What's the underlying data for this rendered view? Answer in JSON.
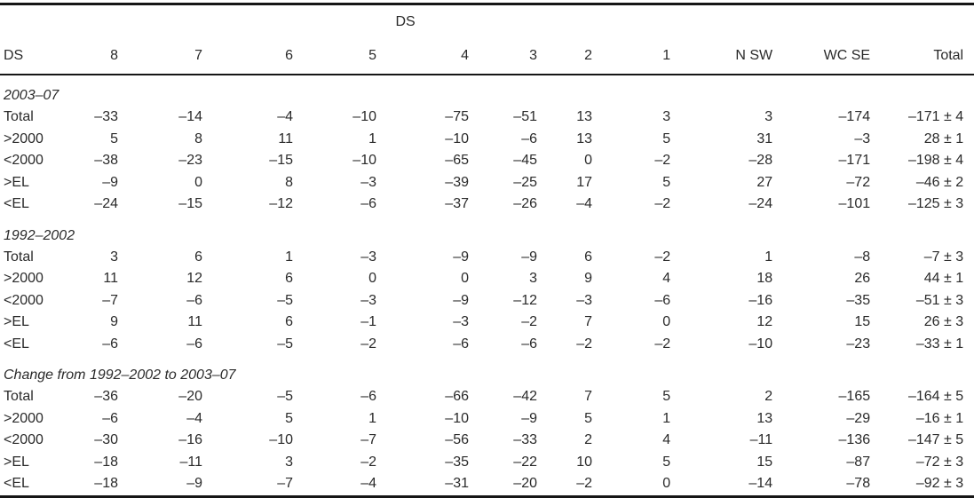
{
  "colors": {
    "background": "#ffffff",
    "text": "#2a2a2a",
    "rule": "#161616"
  },
  "table": {
    "span_header": "DS",
    "columns": [
      "DS",
      "8",
      "7",
      "6",
      "5",
      "4",
      "3",
      "2",
      "1",
      "N SW",
      "WC SE",
      "Total"
    ],
    "sections": [
      {
        "title": "2003–07",
        "rows": [
          {
            "label": "Total",
            "values": [
              "–33",
              "–14",
              "–4",
              "–10",
              "–75",
              "–51",
              "13",
              "3",
              "3",
              "–174",
              "–171 ± 4"
            ]
          },
          {
            "label": ">2000",
            "values": [
              "5",
              "8",
              "11",
              "1",
              "–10",
              "–6",
              "13",
              "5",
              "31",
              "–3",
              "28 ± 1"
            ]
          },
          {
            "label": "<2000",
            "values": [
              "–38",
              "–23",
              "–15",
              "–10",
              "–65",
              "–45",
              "0",
              "–2",
              "–28",
              "–171",
              "–198 ± 4"
            ]
          },
          {
            "label": ">EL",
            "values": [
              "–9",
              "0",
              "8",
              "–3",
              "–39",
              "–25",
              "17",
              "5",
              "27",
              "–72",
              "–46 ± 2"
            ]
          },
          {
            "label": "<EL",
            "values": [
              "–24",
              "–15",
              "–12",
              "–6",
              "–37",
              "–26",
              "–4",
              "–2",
              "–24",
              "–101",
              "–125 ± 3"
            ]
          }
        ]
      },
      {
        "title": "1992–2002",
        "rows": [
          {
            "label": "Total",
            "values": [
              "3",
              "6",
              "1",
              "–3",
              "–9",
              "–9",
              "6",
              "–2",
              "1",
              "–8",
              "–7 ± 3"
            ]
          },
          {
            "label": ">2000",
            "values": [
              "11",
              "12",
              "6",
              "0",
              "0",
              "3",
              "9",
              "4",
              "18",
              "26",
              "44 ± 1"
            ]
          },
          {
            "label": "<2000",
            "values": [
              "–7",
              "–6",
              "–5",
              "–3",
              "–9",
              "–12",
              "–3",
              "–6",
              "–16",
              "–35",
              "–51 ± 3"
            ]
          },
          {
            "label": ">EL",
            "values": [
              "9",
              "11",
              "6",
              "–1",
              "–3",
              "–2",
              "7",
              "0",
              "12",
              "15",
              "26 ± 3"
            ]
          },
          {
            "label": "<EL",
            "values": [
              "–6",
              "–6",
              "–5",
              "–2",
              "–6",
              "–6",
              "–2",
              "–2",
              "–10",
              "–23",
              "–33 ± 1"
            ]
          }
        ]
      },
      {
        "title": "Change from 1992–2002 to 2003–07",
        "rows": [
          {
            "label": "Total",
            "values": [
              "–36",
              "–20",
              "–5",
              "–6",
              "–66",
              "–42",
              "7",
              "5",
              "2",
              "–165",
              "–164 ± 5"
            ]
          },
          {
            "label": ">2000",
            "values": [
              "–6",
              "–4",
              "5",
              "1",
              "–10",
              "–9",
              "5",
              "1",
              "13",
              "–29",
              "–16 ± 1"
            ]
          },
          {
            "label": "<2000",
            "values": [
              "–30",
              "–16",
              "–10",
              "–7",
              "–56",
              "–33",
              "2",
              "4",
              "–11",
              "–136",
              "–147 ± 5"
            ]
          },
          {
            "label": ">EL",
            "values": [
              "–18",
              "–11",
              "3",
              "–2",
              "–35",
              "–22",
              "10",
              "5",
              "15",
              "–87",
              "–72 ± 3"
            ]
          },
          {
            "label": "<EL",
            "values": [
              "–18",
              "–9",
              "–7",
              "–4",
              "–31",
              "–20",
              "–2",
              "0",
              "–14",
              "–78",
              "–92 ± 3"
            ]
          }
        ]
      }
    ]
  }
}
